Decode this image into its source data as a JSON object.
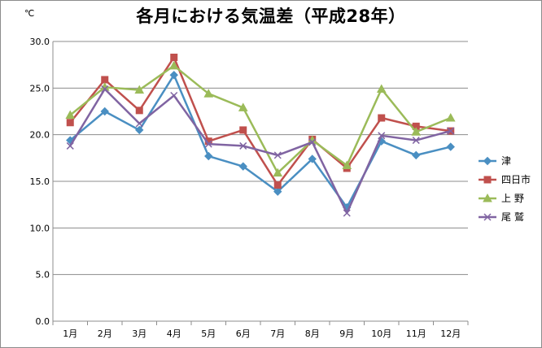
{
  "chart_data": {
    "type": "line",
    "title": "各月における気温差（平成28年）",
    "ylabel": "℃",
    "xlabel": "",
    "ylim": [
      0,
      30
    ],
    "yticks": [
      "0.0",
      "5.0",
      "10.0",
      "15.0",
      "20.0",
      "25.0",
      "30.0"
    ],
    "categories": [
      "1月",
      "2月",
      "3月",
      "4月",
      "5月",
      "6月",
      "7月",
      "8月",
      "9月",
      "10月",
      "11月",
      "12月"
    ],
    "grid": "horizontal",
    "legend_position": "right",
    "series": [
      {
        "name": "津",
        "color": "#4a8fc2",
        "marker": "diamond",
        "values": [
          19.4,
          22.5,
          20.5,
          26.4,
          17.7,
          16.6,
          13.9,
          17.4,
          12.2,
          19.3,
          17.8,
          18.7
        ]
      },
      {
        "name": "四日市",
        "color": "#c0504d",
        "marker": "square",
        "values": [
          21.3,
          25.9,
          22.6,
          28.3,
          19.3,
          20.5,
          14.6,
          19.5,
          16.4,
          21.8,
          20.9,
          20.4
        ]
      },
      {
        "name": "上 野",
        "color": "#9bbb59",
        "marker": "triangle",
        "values": [
          22.1,
          25.1,
          24.8,
          27.4,
          24.4,
          22.9,
          15.9,
          19.4,
          16.7,
          24.9,
          20.3,
          21.8
        ]
      },
      {
        "name": "尾 鷲",
        "color": "#8064a2",
        "marker": "x",
        "values": [
          18.8,
          24.9,
          21.2,
          24.2,
          19.0,
          18.8,
          17.8,
          19.2,
          11.6,
          19.9,
          19.4,
          20.4
        ]
      }
    ]
  }
}
